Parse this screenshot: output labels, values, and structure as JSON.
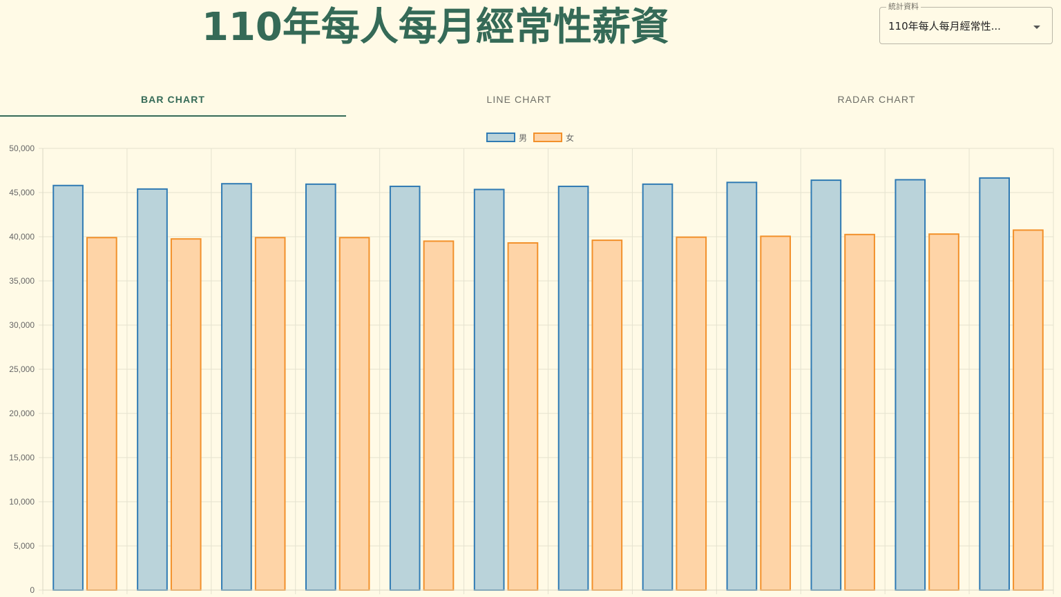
{
  "header": {
    "title": "110年每人每月經常性薪資"
  },
  "selector": {
    "label": "統計資料",
    "value": "110年每人每月經常性..."
  },
  "tabs": [
    {
      "label": "BAR CHART",
      "active": true
    },
    {
      "label": "LINE CHART",
      "active": false
    },
    {
      "label": "RADAR CHART",
      "active": false
    }
  ],
  "colors": {
    "accent": "#356a57",
    "background": "#fffae6",
    "male_fill": "#bad3da",
    "male_stroke": "#2f7ab3",
    "female_fill": "#fed4a7",
    "female_stroke": "#f2902a",
    "grid": "#e4e2cf"
  },
  "chart_data": {
    "type": "bar",
    "title": "",
    "xlabel": "",
    "ylabel": "",
    "ylim": [
      0,
      50000
    ],
    "yticks": [
      "0",
      "5,000",
      "10,000",
      "15,000",
      "20,000",
      "25,000",
      "30,000",
      "35,000",
      "40,000",
      "45,000",
      "50,000"
    ],
    "grid": true,
    "legend": "top-center",
    "categories": [
      "",
      "",
      "",
      "",
      "",
      "",
      "",
      "",
      "",
      "",
      "",
      ""
    ],
    "series": [
      {
        "name": "男",
        "values": [
          45800,
          45400,
          46000,
          45950,
          45700,
          45350,
          45700,
          45950,
          46150,
          46400,
          46450,
          46650
        ]
      },
      {
        "name": "女",
        "values": [
          39900,
          39750,
          39900,
          39900,
          39500,
          39300,
          39600,
          39950,
          40050,
          40250,
          40300,
          40750
        ]
      }
    ]
  }
}
